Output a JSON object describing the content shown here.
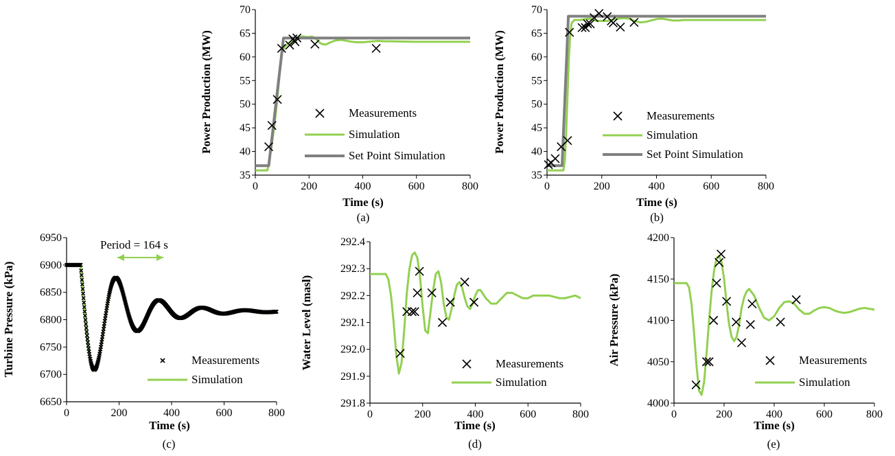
{
  "colors": {
    "simulation": "#92d050",
    "set_point": "#808080",
    "measurement": "#000000",
    "axis": "#000000"
  },
  "chart_data": [
    {
      "id": "a",
      "type": "line",
      "caption": "(a)",
      "xlabel": "Time (s)",
      "ylabel": "Power Production (MW)",
      "xlim": [
        0,
        800
      ],
      "ylim": [
        35,
        70
      ],
      "xticks": [
        0,
        200,
        400,
        600,
        800
      ],
      "yticks": [
        35,
        40,
        45,
        50,
        55,
        60,
        65,
        70
      ],
      "legend": [
        "Measurements",
        "Simulation",
        "Set Point Simulation"
      ],
      "series": [
        {
          "name": "Measurements",
          "kind": "marker-x",
          "x": [
            50,
            62,
            82,
            98,
            128,
            140,
            148,
            155,
            222,
            450
          ],
          "y": [
            41,
            45.5,
            51,
            61.8,
            62.5,
            63.8,
            63.2,
            64,
            62.7,
            61.8
          ]
        },
        {
          "name": "Simulation",
          "kind": "line",
          "x": [
            0,
            45,
            50,
            60,
            70,
            80,
            90,
            100,
            110,
            120,
            130,
            140,
            150,
            160,
            170,
            180,
            190,
            200,
            210,
            220,
            230,
            240,
            250,
            260,
            270,
            280,
            300,
            320,
            340,
            360,
            380,
            400,
            420,
            440,
            460,
            480,
            500,
            600,
            700,
            800
          ],
          "y": [
            36,
            36,
            37.5,
            41,
            45,
            50,
            56,
            61,
            62.2,
            62.7,
            63.1,
            63.6,
            64,
            64.2,
            64.3,
            64.3,
            64.2,
            64.2,
            64.3,
            64.1,
            63.6,
            63,
            62.7,
            62.6,
            62.8,
            63.1,
            63.5,
            63.6,
            63.4,
            63.2,
            63.1,
            63.1,
            63.2,
            63.3,
            63.4,
            63.3,
            63.3,
            63.2,
            63.2,
            63.2
          ]
        },
        {
          "name": "Set Point Simulation",
          "kind": "line",
          "x": [
            0,
            45,
            50,
            105,
            800
          ],
          "y": [
            37,
            37,
            37,
            64,
            64
          ]
        }
      ]
    },
    {
      "id": "b",
      "type": "line",
      "caption": "(b)",
      "xlabel": "Time (s)",
      "ylabel": "Power Production (MW)",
      "xlim": [
        0,
        800
      ],
      "ylim": [
        35,
        70
      ],
      "xticks": [
        0,
        200,
        400,
        600,
        800
      ],
      "yticks": [
        35,
        40,
        45,
        50,
        55,
        60,
        65,
        70
      ],
      "legend": [
        "Measurements",
        "Simulation",
        "Set Point Simulation"
      ],
      "series": [
        {
          "name": "Measurements",
          "kind": "marker-x",
          "x": [
            5,
            15,
            30,
            52,
            75,
            82,
            128,
            140,
            148,
            158,
            172,
            190,
            220,
            235,
            242,
            268,
            318
          ],
          "y": [
            37.2,
            37.6,
            38.5,
            41,
            42.3,
            65.2,
            66.2,
            66.2,
            67,
            67,
            68.3,
            69.2,
            68.5,
            67.6,
            67.2,
            66.3,
            67.3
          ]
        },
        {
          "name": "Simulation",
          "kind": "line",
          "x": [
            0,
            60,
            65,
            70,
            75,
            80,
            85,
            90,
            100,
            120,
            140,
            160,
            180,
            200,
            220,
            240,
            260,
            280,
            300,
            320,
            340,
            360,
            380,
            400,
            420,
            440,
            460,
            480,
            500,
            600,
            700,
            800
          ],
          "y": [
            36,
            36,
            38,
            44,
            52,
            60,
            65,
            67.2,
            67.8,
            67.8,
            68,
            68.1,
            67.6,
            67.6,
            67.6,
            67.9,
            68.1,
            68.2,
            68.1,
            67.6,
            67.3,
            67.4,
            67.7,
            68,
            68.1,
            67.9,
            67.7,
            67.7,
            67.8,
            67.8,
            67.8,
            67.8
          ]
        },
        {
          "name": "Set Point Simulation",
          "kind": "line",
          "x": [
            0,
            55,
            78,
            800
          ],
          "y": [
            37,
            37,
            68.6,
            68.6
          ]
        }
      ]
    },
    {
      "id": "c",
      "type": "line",
      "caption": "(c)",
      "xlabel": "Time (s)",
      "ylabel": "Turbine Pressure (kPa)",
      "xlim": [
        0,
        800
      ],
      "ylim": [
        6650,
        6950
      ],
      "xticks": [
        0,
        200,
        400,
        600,
        800
      ],
      "yticks": [
        6650,
        6700,
        6750,
        6800,
        6850,
        6900,
        6950
      ],
      "legend": [
        "Measurements",
        "Simulation"
      ],
      "annotation": "Period = 164 s",
      "annotation_arrow_x": [
        190,
        355
      ],
      "annotation_arrow_y": 6918,
      "oscillation": {
        "base": 6815,
        "initial": 6900,
        "step_start": 55,
        "amplitude": 105,
        "period": 164,
        "decay": 150,
        "trough_time": 110
      },
      "series": [
        {
          "name": "Measurements",
          "kind": "marker-x-dense",
          "x_range": [
            0,
            800
          ],
          "x_step": 1.5
        },
        {
          "name": "Simulation",
          "kind": "line-oscillation"
        }
      ]
    },
    {
      "id": "d",
      "type": "line",
      "caption": "(d)",
      "xlabel": "Time (s)",
      "ylabel": "Water Level (masl)",
      "xlim": [
        0,
        800
      ],
      "ylim": [
        291.8,
        292.4
      ],
      "xticks": [
        0,
        200,
        400,
        600,
        800
      ],
      "yticks": [
        291.8,
        291.9,
        292.0,
        292.1,
        292.2,
        292.3,
        292.4
      ],
      "legend": [
        "Measurements",
        "Simulation"
      ],
      "series": [
        {
          "name": "Measurements",
          "kind": "marker-x",
          "x": [
            115,
            140,
            160,
            170,
            180,
            188,
            235,
            275,
            305,
            360,
            395
          ],
          "y": [
            291.985,
            292.14,
            292.14,
            292.14,
            292.21,
            292.29,
            292.21,
            292.1,
            292.175,
            292.25,
            292.175
          ]
        },
        {
          "name": "Simulation",
          "kind": "line",
          "x": [
            0,
            60,
            70,
            80,
            90,
            100,
            110,
            120,
            130,
            140,
            150,
            160,
            170,
            180,
            190,
            200,
            210,
            220,
            230,
            240,
            250,
            260,
            270,
            280,
            290,
            300,
            310,
            320,
            330,
            340,
            350,
            360,
            370,
            380,
            390,
            400,
            410,
            420,
            440,
            460,
            480,
            500,
            520,
            540,
            560,
            580,
            600,
            620,
            640,
            660,
            680,
            700,
            720,
            740,
            760,
            780,
            800
          ],
          "y": [
            292.28,
            292.28,
            292.26,
            292.2,
            292.1,
            291.98,
            291.91,
            291.95,
            292.07,
            292.21,
            292.3,
            292.35,
            292.36,
            292.34,
            292.27,
            292.16,
            292.07,
            292.06,
            292.14,
            292.22,
            292.28,
            292.29,
            292.25,
            292.17,
            292.12,
            292.11,
            292.15,
            292.2,
            292.24,
            292.25,
            292.23,
            292.19,
            292.16,
            292.15,
            292.17,
            292.2,
            292.22,
            292.22,
            292.19,
            292.17,
            292.17,
            292.19,
            292.21,
            292.21,
            292.2,
            292.19,
            292.19,
            292.2,
            292.2,
            292.2,
            292.2,
            292.195,
            292.19,
            292.19,
            292.195,
            292.2,
            292.19
          ]
        }
      ]
    },
    {
      "id": "e",
      "type": "line",
      "caption": "(e)",
      "xlabel": "Time (s)",
      "ylabel": "Air Pressure  (kPa)",
      "xlim": [
        0,
        800
      ],
      "ylim": [
        4000,
        4200
      ],
      "xticks": [
        0,
        200,
        400,
        600,
        800
      ],
      "yticks": [
        4000,
        4050,
        4100,
        4150,
        4200
      ],
      "legend": [
        "Measurements",
        "Simulation"
      ],
      "series": [
        {
          "name": "Measurements",
          "kind": "marker-x",
          "x": [
            88,
            130,
            140,
            158,
            170,
            180,
            188,
            210,
            248,
            270,
            305,
            312,
            425,
            488
          ],
          "y": [
            4022,
            4050,
            4050,
            4100,
            4145,
            4170,
            4180,
            4123,
            4098,
            4073,
            4095,
            4120,
            4098,
            4125
          ]
        },
        {
          "name": "Simulation",
          "kind": "line",
          "x": [
            0,
            50,
            60,
            70,
            80,
            90,
            100,
            110,
            120,
            130,
            140,
            150,
            160,
            170,
            180,
            190,
            200,
            210,
            220,
            230,
            240,
            250,
            260,
            270,
            280,
            290,
            300,
            320,
            340,
            360,
            380,
            400,
            420,
            440,
            460,
            480,
            500,
            520,
            540,
            560,
            580,
            600,
            620,
            640,
            660,
            680,
            700,
            720,
            740,
            760,
            780,
            800
          ],
          "y": [
            4145,
            4145,
            4140,
            4120,
            4085,
            4045,
            4015,
            4010,
            4025,
            4060,
            4100,
            4135,
            4160,
            4175,
            4178,
            4170,
            4150,
            4120,
            4095,
            4080,
            4075,
            4080,
            4095,
            4115,
            4128,
            4135,
            4138,
            4130,
            4115,
            4103,
            4100,
            4105,
            4115,
            4122,
            4123,
            4120,
            4113,
            4108,
            4108,
            4112,
            4115,
            4116,
            4115,
            4112,
            4110,
            4109,
            4110,
            4112,
            4114,
            4115,
            4114,
            4113
          ]
        }
      ]
    }
  ]
}
